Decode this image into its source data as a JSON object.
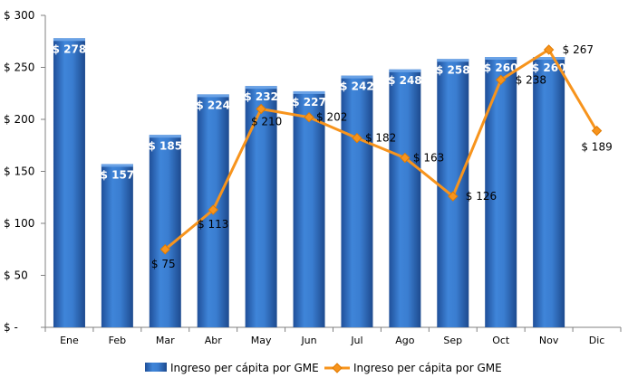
{
  "chart_data": {
    "type": "bar",
    "categories": [
      "Ene",
      "Feb",
      "Mar",
      "Abr",
      "May",
      "Jun",
      "Jul",
      "Ago",
      "Sep",
      "Oct",
      "Nov",
      "Dic"
    ],
    "series": [
      {
        "name": "Ingreso per cápita por GME",
        "type": "bar",
        "values": [
          278,
          157,
          185,
          224,
          232,
          227,
          242,
          248,
          258,
          260,
          260,
          null
        ],
        "labels": [
          "$ 278",
          "$ 157",
          "$ 185",
          "$ 224",
          "$ 232",
          "$ 227",
          "$ 242",
          "$ 248",
          "$ 258",
          "$ 260",
          "$ 260",
          ""
        ],
        "color": "#2e6cc4"
      },
      {
        "name": "Ingreso per cápita por GME",
        "type": "line",
        "values": [
          null,
          null,
          75,
          113,
          210,
          202,
          182,
          163,
          126,
          238,
          267,
          189
        ],
        "labels": [
          "",
          "",
          "$ 75",
          "$ 113",
          "$ 210",
          "$ 202",
          "$ 182",
          "$ 163",
          "$ 126",
          "$ 238",
          "$ 267",
          "$ 189"
        ],
        "color": "#f7941d"
      }
    ],
    "ylim": [
      0,
      300
    ],
    "yticks": [
      0,
      50,
      100,
      150,
      200,
      250,
      300
    ],
    "ytick_labels": [
      "$ -",
      "$ 50",
      "$ 100",
      "$ 150",
      "$ 200",
      "$ 250",
      "$ 300"
    ],
    "grid": false,
    "legend_position": "bottom"
  }
}
